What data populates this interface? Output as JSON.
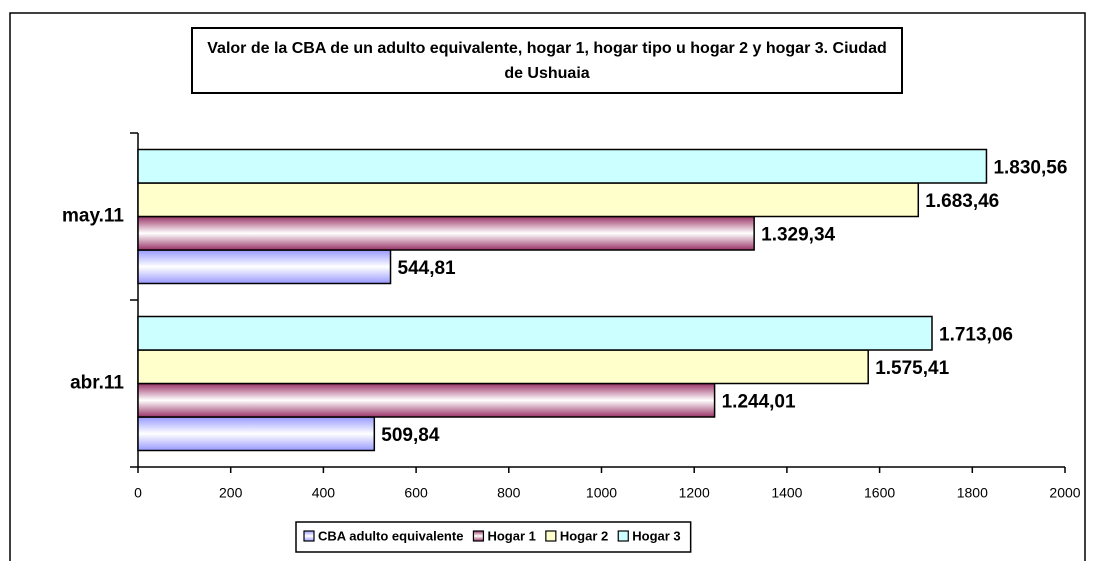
{
  "chart_data": {
    "type": "bar",
    "orientation": "horizontal",
    "title": "Valor de la CBA de un adulto equivalente, hogar 1, hogar tipo u hogar 2 y hogar 3. Ciudad de Ushuaia",
    "categories": [
      "abr.11",
      "may.11"
    ],
    "series": [
      {
        "name": "CBA adulto equivalente",
        "color": "#9999ff",
        "gradient": true,
        "values": [
          509.84,
          544.81
        ],
        "value_labels": [
          "509,84",
          "544,81"
        ]
      },
      {
        "name": "Hogar 1",
        "color": "#993366",
        "gradient": true,
        "values": [
          1244.01,
          1329.34
        ],
        "value_labels": [
          "1.244,01",
          "1.329,34"
        ]
      },
      {
        "name": "Hogar 2",
        "color": "#ffffcc",
        "gradient": false,
        "values": [
          1575.41,
          1683.46
        ],
        "value_labels": [
          "1.575,41",
          "1.683,46"
        ]
      },
      {
        "name": "Hogar 3",
        "color": "#ccffff",
        "gradient": false,
        "values": [
          1713.06,
          1830.56
        ],
        "value_labels": [
          "1.713,06",
          "1.830,56"
        ]
      }
    ],
    "xlim": [
      0,
      2000
    ],
    "xticks": [
      0,
      200,
      400,
      600,
      800,
      1000,
      1200,
      1400,
      1600,
      1800,
      2000
    ],
    "legend": "bottom"
  }
}
